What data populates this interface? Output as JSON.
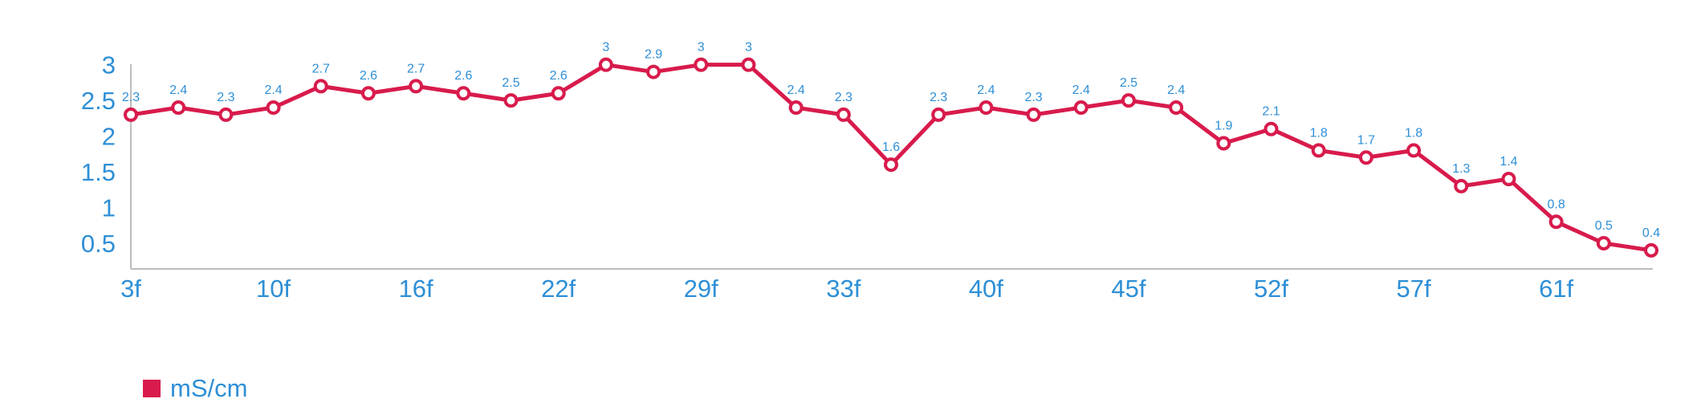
{
  "colors": {
    "series": "#d81b4c",
    "text": "#2e8fd6",
    "axis": "#bdbdbd",
    "marker_fill": "#ffffff"
  },
  "chart_data": {
    "type": "line",
    "x_tick_labels": [
      "3f",
      "10f",
      "16f",
      "22f",
      "29f",
      "33f",
      "40f",
      "45f",
      "52f",
      "57f",
      "61f"
    ],
    "y_tick_labels": [
      "0.5",
      "1",
      "1.5",
      "2",
      "2.5",
      "3"
    ],
    "ylim": [
      0.14,
      3.21
    ],
    "grid": false,
    "legend_position": "bottom-left",
    "series": [
      {
        "name": "mS/cm",
        "values": [
          2.3,
          2.4,
          2.3,
          2.4,
          2.7,
          2.6,
          2.7,
          2.6,
          2.5,
          2.6,
          3,
          2.9,
          3,
          3,
          2.4,
          2.3,
          1.6,
          2.3,
          2.4,
          2.3,
          2.4,
          2.5,
          2.4,
          1.9,
          2.1,
          1.8,
          1.7,
          1.8,
          1.3,
          1.4,
          0.8,
          0.5,
          0.4
        ]
      }
    ]
  }
}
